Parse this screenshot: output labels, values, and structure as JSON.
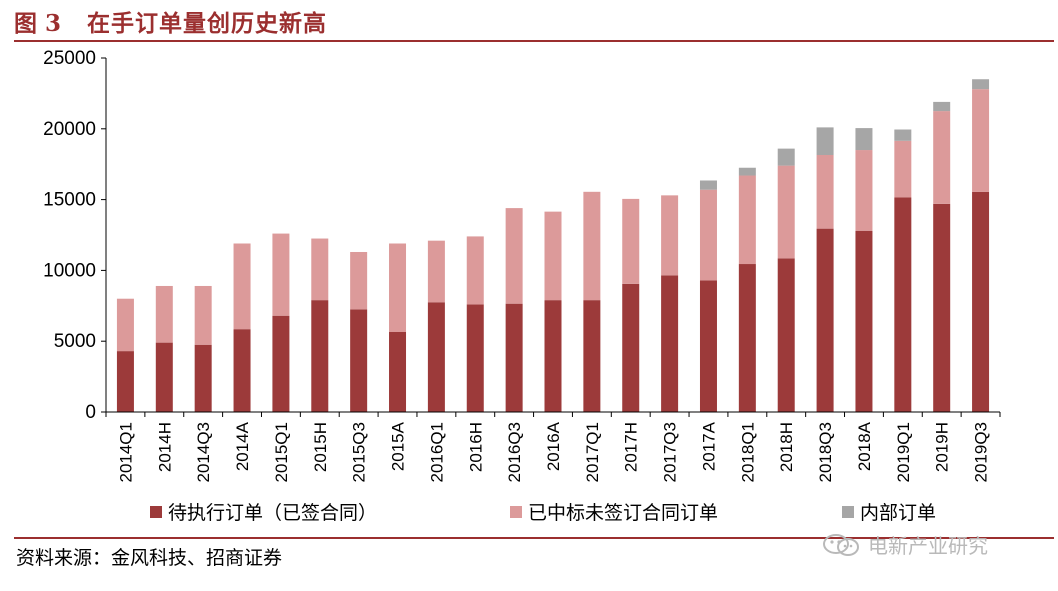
{
  "header": {
    "fig_number": "图 3",
    "title": "在手订单量创历史新高"
  },
  "source": "资料来源：金风科技、招商证券",
  "watermark": "电新产业研究",
  "colors": {
    "accent": "#9b2f2f",
    "pending": "#9c3a3a",
    "won_unsigned": "#dc9a9a",
    "internal": "#a6a6a6"
  },
  "chart_data": {
    "type": "bar",
    "stacked": true,
    "categories": [
      "2014Q1",
      "2014H",
      "2014Q3",
      "2014A",
      "2015Q1",
      "2015H",
      "2015Q3",
      "2015A",
      "2016Q1",
      "2016H",
      "2016Q3",
      "2016A",
      "2017Q1",
      "2017H",
      "2017Q3",
      "2017A",
      "2018Q1",
      "2018H",
      "2018Q3",
      "2018A",
      "2019Q1",
      "2019H",
      "2019Q3"
    ],
    "series": [
      {
        "name": "待执行订单（已签合同）",
        "color_key": "pending",
        "values": [
          4300,
          4900,
          4750,
          5850,
          6800,
          7900,
          7250,
          5650,
          7750,
          7600,
          7650,
          7900,
          7900,
          9050,
          9650,
          9300,
          10450,
          10850,
          12950,
          12800,
          15150,
          14700,
          15550
        ]
      },
      {
        "name": "已中标未签订合同订单",
        "color_key": "won_unsigned",
        "values": [
          3700,
          4000,
          4150,
          6050,
          5800,
          4350,
          4050,
          6250,
          4350,
          4800,
          6750,
          6250,
          7650,
          6000,
          5650,
          6400,
          6250,
          6550,
          5200,
          5700,
          4000,
          6550,
          7250
        ]
      },
      {
        "name": "内部订单",
        "color_key": "internal",
        "values": [
          0,
          0,
          0,
          0,
          0,
          0,
          0,
          0,
          0,
          0,
          0,
          0,
          0,
          0,
          0,
          650,
          550,
          1200,
          1950,
          1550,
          800,
          650,
          700
        ]
      }
    ],
    "ylim": [
      0,
      25000
    ],
    "yticks": [
      0,
      5000,
      10000,
      15000,
      20000,
      25000
    ],
    "ytick_labels": [
      "0",
      "5000",
      "10000",
      "15000",
      "20000",
      "25000"
    ],
    "grid": false,
    "legend_position": "bottom"
  }
}
